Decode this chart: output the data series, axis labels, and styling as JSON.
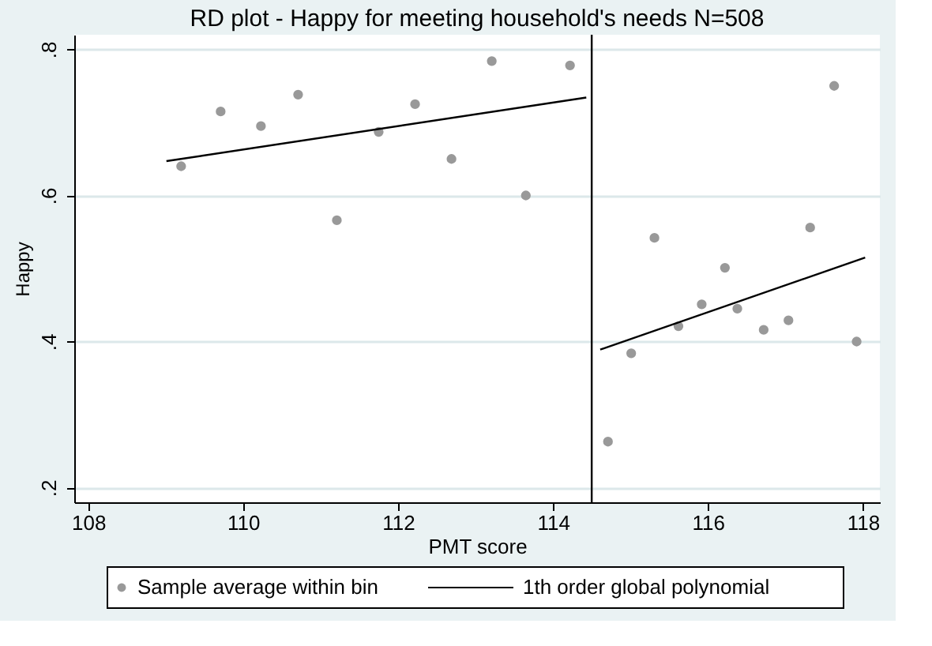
{
  "chart_data": {
    "type": "scatter",
    "title": "RD plot - Happy for meeting household's needs N=508",
    "xlabel": "PMT score",
    "ylabel": "Happy",
    "xlim": [
      107.82,
      118.22
    ],
    "xticks": [
      108,
      110,
      112,
      114,
      116,
      118
    ],
    "ylim": [
      0.18,
      0.82
    ],
    "yticks": [
      {
        "value": 0.2,
        "label": ".2"
      },
      {
        "value": 0.4,
        "label": ".4"
      },
      {
        "value": 0.6,
        "label": ".6"
      },
      {
        "value": 0.8,
        "label": ".8"
      }
    ],
    "grid": "y",
    "legend": "bottom",
    "ref_lines": [
      {
        "axis": "x",
        "value": 114.5,
        "color": "#000000"
      }
    ],
    "series": [
      {
        "name": "Sample average within bin",
        "type": "scatter",
        "marker": "circle",
        "color": "#999999",
        "x": [
          109.2,
          109.71,
          110.23,
          110.71,
          111.21,
          111.75,
          112.22,
          112.69,
          113.21,
          113.65,
          114.22,
          114.71,
          115.01,
          115.31,
          115.62,
          115.92,
          116.22,
          116.38,
          116.72,
          117.04,
          117.32,
          117.63,
          117.92
        ],
        "values": [
          0.64,
          0.715,
          0.695,
          0.738,
          0.566,
          0.687,
          0.725,
          0.65,
          0.784,
          0.6,
          0.778,
          0.263,
          0.384,
          0.542,
          0.421,
          0.451,
          0.501,
          0.445,
          0.416,
          0.429,
          0.556,
          0.75,
          0.4
        ]
      },
      {
        "name": "1th order global polynomial",
        "type": "line",
        "color": "#000000",
        "x": [
          109.01,
          114.43,
          114.5,
          114.61,
          118.03
        ],
        "values": [
          0.647,
          0.734,
          null,
          0.389,
          0.515
        ]
      }
    ]
  }
}
